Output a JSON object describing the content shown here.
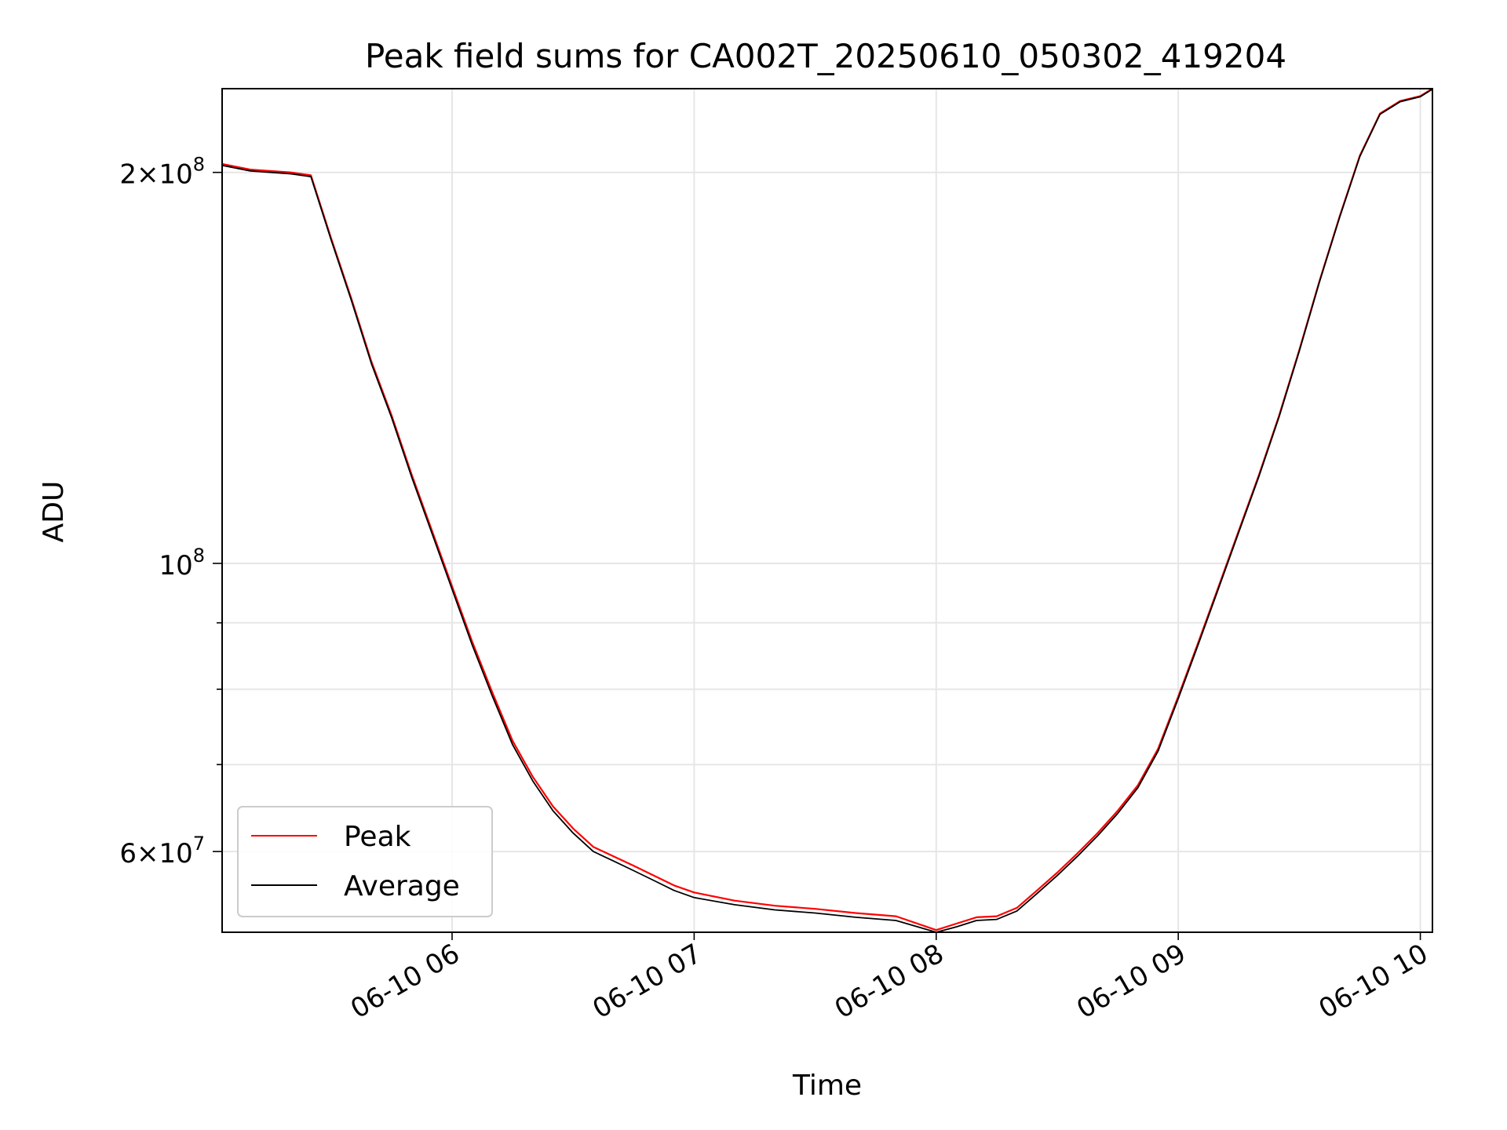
{
  "chart_data": {
    "type": "line",
    "title": "Peak field sums for CA002T_20250610_050302_419204",
    "xlabel": "Time",
    "ylabel": "ADU",
    "yscale": "log",
    "xlim": [
      "2025-06-10 05:03",
      "2025-06-10 10:03"
    ],
    "ylim": [
      52000000,
      232000000
    ],
    "grid": true,
    "legend_position": "lower-left",
    "x_ticks": [
      "06-10 06",
      "06-10 07",
      "06-10 08",
      "06-10 09",
      "06-10 10"
    ],
    "y_ticks": [
      {
        "value": 200000000,
        "mantissa": "2",
        "exponent": "8"
      },
      {
        "value": 100000000,
        "mantissa": "",
        "exponent": "8"
      },
      {
        "value": 60000000,
        "mantissa": "6",
        "exponent": "7"
      }
    ],
    "y_minor_ticks": [
      70000000,
      80000000,
      90000000
    ],
    "series": [
      {
        "name": "Peak",
        "color": "#ff0000",
        "x": [
          "05:03",
          "05:10",
          "05:20",
          "05:25",
          "05:30",
          "05:35",
          "05:40",
          "05:45",
          "05:50",
          "05:55",
          "06:00",
          "06:05",
          "06:10",
          "06:15",
          "06:20",
          "06:25",
          "06:30",
          "06:35",
          "06:40",
          "06:45",
          "06:50",
          "06:55",
          "07:00",
          "07:10",
          "07:20",
          "07:30",
          "07:40",
          "07:50",
          "08:00",
          "08:05",
          "08:10",
          "08:15",
          "08:20",
          "08:25",
          "08:30",
          "08:35",
          "08:40",
          "08:45",
          "08:50",
          "08:55",
          "09:00",
          "09:05",
          "09:10",
          "09:15",
          "09:20",
          "09:25",
          "09:30",
          "09:35",
          "09:40",
          "09:45",
          "09:50",
          "09:55",
          "10:00",
          "10:03"
        ],
        "y": [
          203000000,
          201000000,
          200000000,
          199000000,
          178000000,
          160000000,
          143000000,
          130000000,
          117000000,
          106000000,
          96000000,
          87000000,
          79500000,
          73000000,
          68500000,
          65000000,
          62500000,
          60500000,
          59500000,
          58500000,
          57500000,
          56500000,
          55800000,
          55000000,
          54500000,
          54200000,
          53800000,
          53500000,
          52200000,
          52800000,
          53400000,
          53500000,
          54300000,
          56000000,
          57800000,
          59800000,
          62000000,
          64500000,
          67500000,
          72000000,
          79000000,
          87000000,
          96000000,
          106000000,
          117000000,
          130000000,
          146000000,
          165000000,
          185000000,
          206000000,
          222000000,
          227000000,
          229000000,
          232000000
        ]
      },
      {
        "name": "Average",
        "color": "#000000",
        "x": [
          "05:03",
          "05:10",
          "05:20",
          "05:25",
          "05:30",
          "05:35",
          "05:40",
          "05:45",
          "05:50",
          "05:55",
          "06:00",
          "06:05",
          "06:10",
          "06:15",
          "06:20",
          "06:25",
          "06:30",
          "06:35",
          "06:40",
          "06:45",
          "06:50",
          "06:55",
          "07:00",
          "07:10",
          "07:20",
          "07:30",
          "07:40",
          "07:50",
          "08:00",
          "08:05",
          "08:10",
          "08:15",
          "08:20",
          "08:25",
          "08:30",
          "08:35",
          "08:40",
          "08:45",
          "08:50",
          "08:55",
          "09:00",
          "09:05",
          "09:10",
          "09:15",
          "09:20",
          "09:25",
          "09:30",
          "09:35",
          "09:40",
          "09:45",
          "09:50",
          "09:55",
          "10:00",
          "10:03"
        ],
        "y": [
          202500000,
          200500000,
          199500000,
          198500000,
          177500000,
          159500000,
          142500000,
          129500000,
          116500000,
          105500000,
          95500000,
          86500000,
          79000000,
          72500000,
          68000000,
          64500000,
          62000000,
          60000000,
          59000000,
          58000000,
          57000000,
          56000000,
          55300000,
          54600000,
          54100000,
          53800000,
          53400000,
          53100000,
          52000000,
          52500000,
          53100000,
          53200000,
          54000000,
          55700000,
          57500000,
          59500000,
          61700000,
          64200000,
          67200000,
          71700000,
          78700000,
          86700000,
          95700000,
          105700000,
          116700000,
          129700000,
          145700000,
          164700000,
          184700000,
          205700000,
          221700000,
          226700000,
          228700000,
          231800000
        ]
      }
    ]
  }
}
